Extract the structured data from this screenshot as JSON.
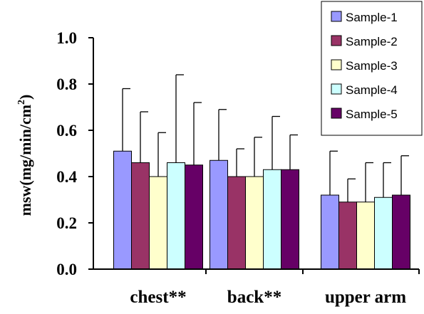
{
  "chart_data": {
    "type": "bar",
    "ylabel": {
      "main": "msw(mg/min/cm",
      "superscript": "2",
      "close": ")"
    },
    "ylim": [
      0,
      1.0
    ],
    "yticks": [
      "0.0",
      "0.2",
      "0.4",
      "0.6",
      "0.8",
      "1.0"
    ],
    "ytick_values": [
      0,
      0.2,
      0.4,
      0.6,
      0.8,
      1.0
    ],
    "categories": [
      "chest**",
      "back**",
      "upper arm"
    ],
    "error_bars": "upper",
    "legend_position": "top-right",
    "series": [
      {
        "name": "Sample-1",
        "color": "#9999ff",
        "values": [
          0.51,
          0.47,
          0.32
        ],
        "errors": [
          0.27,
          0.22,
          0.19
        ]
      },
      {
        "name": "Sample-2",
        "color": "#993366",
        "values": [
          0.46,
          0.4,
          0.29
        ],
        "errors": [
          0.22,
          0.12,
          0.1
        ]
      },
      {
        "name": "Sample-3",
        "color": "#ffffcc",
        "values": [
          0.4,
          0.4,
          0.29
        ],
        "errors": [
          0.19,
          0.17,
          0.17
        ]
      },
      {
        "name": "Sample-4",
        "color": "#ccffff",
        "values": [
          0.46,
          0.43,
          0.31
        ],
        "errors": [
          0.38,
          0.23,
          0.15
        ]
      },
      {
        "name": "Sample-5",
        "color": "#660066",
        "values": [
          0.45,
          0.43,
          0.32
        ],
        "errors": [
          0.27,
          0.15,
          0.17
        ]
      }
    ]
  }
}
